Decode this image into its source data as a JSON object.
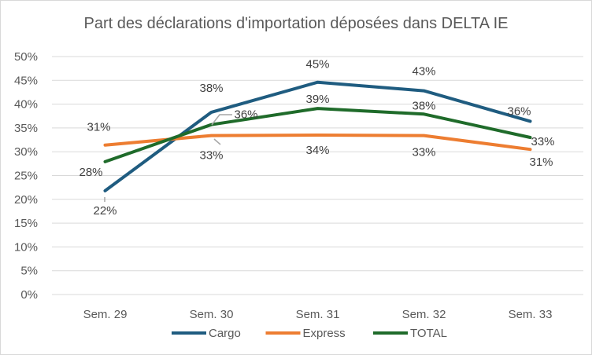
{
  "chart_data": {
    "type": "line",
    "title": "Part des déclarations d'importation déposées dans DELTA IE",
    "categories": [
      "Sem. 29",
      "Sem. 30",
      "Sem. 31",
      "Sem. 32",
      "Sem. 33"
    ],
    "ylim": [
      0,
      50
    ],
    "yticks": [
      0,
      5,
      10,
      15,
      20,
      25,
      30,
      35,
      40,
      45,
      50
    ],
    "ytick_labels": [
      "0%",
      "5%",
      "10%",
      "15%",
      "20%",
      "25%",
      "30%",
      "35%",
      "40%",
      "45%",
      "50%"
    ],
    "grid": true,
    "legend_position": "bottom",
    "series": [
      {
        "name": "Cargo",
        "color": "#1f5c80",
        "values": [
          21.8,
          38.3,
          44.6,
          42.8,
          36.4
        ],
        "labels": [
          "22%",
          "38%",
          "45%",
          "43%",
          "36%"
        ]
      },
      {
        "name": "Express",
        "color": "#ed7d31",
        "values": [
          31.4,
          33.4,
          33.5,
          33.4,
          30.5
        ],
        "labels": [
          "31%",
          "33%",
          "34%",
          "33%",
          "31%"
        ]
      },
      {
        "name": "TOTAL",
        "color": "#1f6b2a",
        "values": [
          27.9,
          35.7,
          39.1,
          37.9,
          33.0
        ],
        "labels": [
          "28%",
          "36%",
          "39%",
          "38%",
          "33%"
        ]
      }
    ]
  }
}
